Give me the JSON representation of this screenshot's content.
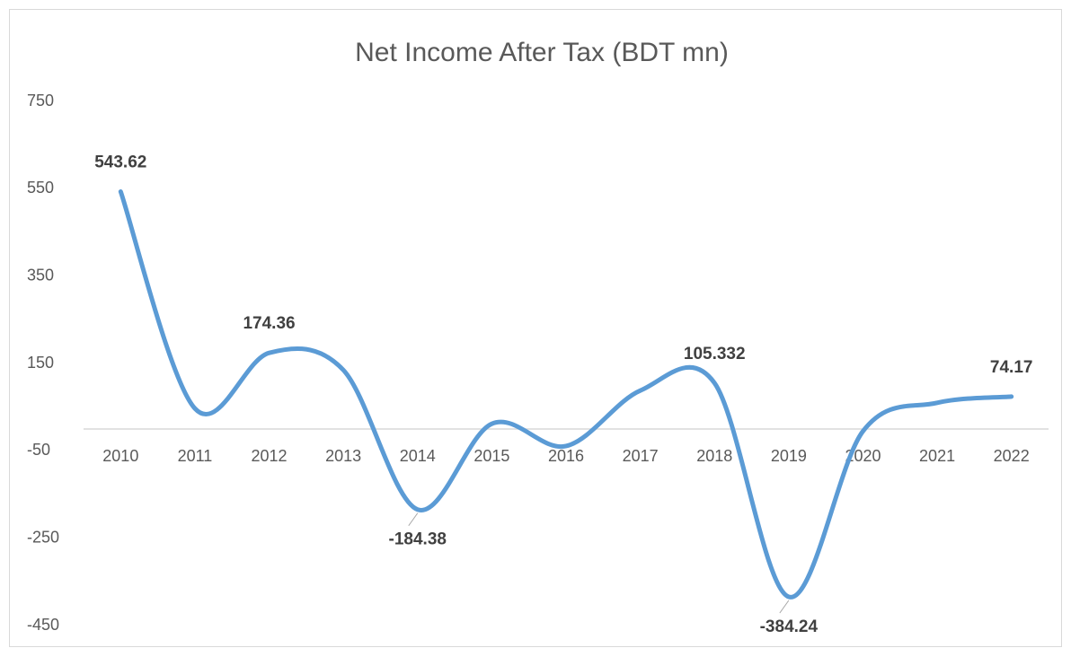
{
  "chart_data": {
    "type": "line",
    "title": "Net Income After Tax (BDT mn)",
    "categories": [
      "2010",
      "2011",
      "2012",
      "2013",
      "2014",
      "2015",
      "2016",
      "2017",
      "2018",
      "2019",
      "2020",
      "2021",
      "2022"
    ],
    "series": [
      {
        "name": "Net Income After Tax",
        "color": "#5b9bd5",
        "values": [
          543.62,
          47,
          174.36,
          135,
          -184.38,
          12,
          -39,
          88,
          105.332,
          -384.24,
          -5,
          60,
          74.17
        ],
        "value_labels": [
          "543.62",
          null,
          "174.36",
          null,
          "-184.38",
          null,
          null,
          null,
          "105.332",
          "-384.24",
          null,
          null,
          "74.17"
        ]
      }
    ],
    "ylim": [
      -450,
      750
    ],
    "yticks": [
      -450,
      -250,
      -50,
      150,
      350,
      550,
      750
    ],
    "grid": false
  }
}
